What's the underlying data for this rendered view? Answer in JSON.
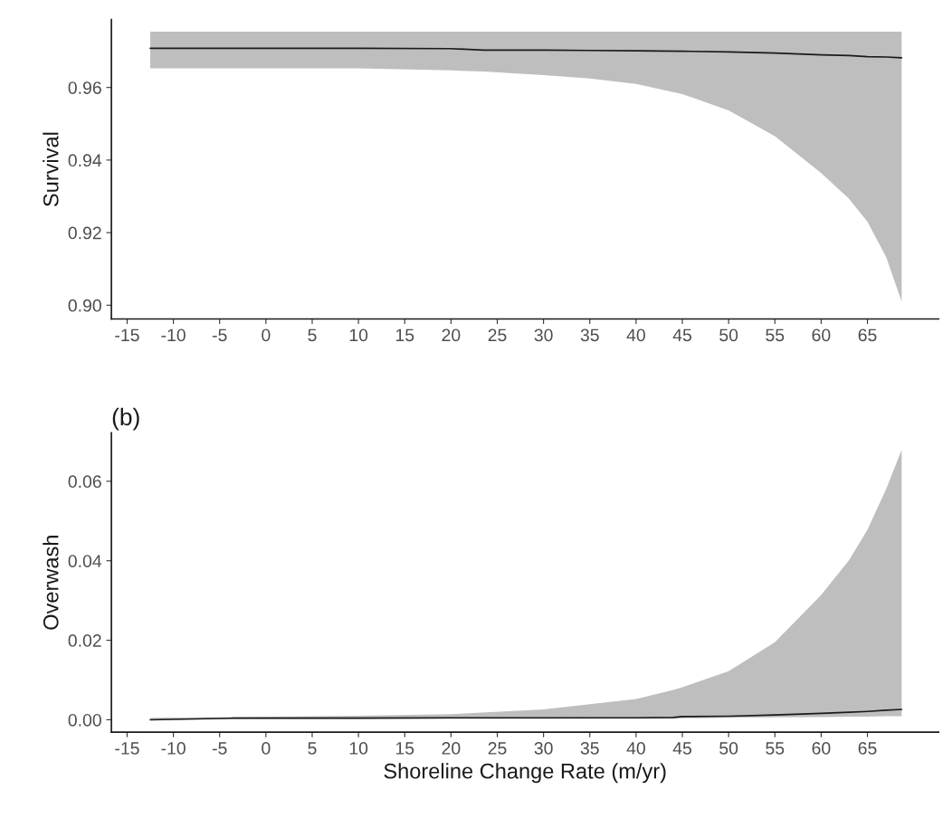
{
  "chart_data": [
    {
      "type": "line",
      "ylabel": "Survival",
      "x": [
        -12.5,
        0,
        10,
        20,
        23.5,
        30,
        35,
        40,
        45,
        50,
        55,
        60,
        63,
        65,
        67,
        68.7
      ],
      "series": [
        {
          "color": "#1a1a1a",
          "values": [
            0.9708,
            0.9708,
            0.9708,
            0.9707,
            0.9703,
            0.9703,
            0.9702,
            0.9701,
            0.97,
            0.9698,
            0.9695,
            0.969,
            0.9688,
            0.9685,
            0.9684,
            0.9682
          ],
          "lower": [
            0.9653,
            0.9653,
            0.9653,
            0.9647,
            0.9644,
            0.9634,
            0.9625,
            0.961,
            0.9582,
            0.9537,
            0.9466,
            0.9364,
            0.9294,
            0.923,
            0.9134,
            0.901
          ],
          "upper": [
            0.9754,
            0.9754,
            0.9754,
            0.9754,
            0.9754,
            0.9754,
            0.9754,
            0.9754,
            0.9754,
            0.9754,
            0.9754,
            0.9754,
            0.9754,
            0.9754,
            0.9754,
            0.9754
          ]
        }
      ],
      "xlim": [
        -16.7,
        72.7
      ],
      "xticks": [
        -15,
        -10,
        -5,
        0,
        5,
        10,
        15,
        20,
        25,
        30,
        35,
        40,
        45,
        50,
        55,
        60,
        65
      ],
      "ylim": [
        0.8962,
        0.9787
      ],
      "yticks": [
        {
          "value": 0.9,
          "label": "0.90"
        },
        {
          "value": 0.92,
          "label": "0.92"
        },
        {
          "value": 0.94,
          "label": "0.94"
        },
        {
          "value": 0.96,
          "label": "0.96"
        }
      ],
      "grid": false
    },
    {
      "type": "line",
      "title": "(b)",
      "xlabel": "Shoreline Change Rate (m/yr)",
      "ylabel": "Overwash",
      "x": [
        -12.5,
        -3.5,
        10,
        20,
        30,
        40,
        44,
        45,
        50,
        55,
        60,
        63,
        65,
        67,
        68.7
      ],
      "series": [
        {
          "color": "#1a1a1a",
          "values": [
            0.0,
            0.0004,
            0.0004,
            0.0005,
            0.0005,
            0.0005,
            0.0006,
            0.0008,
            0.0009,
            0.0012,
            0.0016,
            0.0019,
            0.0021,
            0.0024,
            0.0026
          ],
          "lower": [
            0.0,
            0.0002,
            0.0002,
            0.0002,
            0.0002,
            0.0003,
            0.0003,
            0.0004,
            0.0005,
            0.0006,
            0.0007,
            0.0008,
            0.0008,
            0.0009,
            0.0009
          ],
          "upper": [
            0.0005,
            0.0007,
            0.001,
            0.0014,
            0.0026,
            0.0052,
            0.0075,
            0.0082,
            0.0122,
            0.0195,
            0.0314,
            0.0401,
            0.0478,
            0.0579,
            0.0679
          ]
        }
      ],
      "xlim": [
        -16.7,
        72.7
      ],
      "xticks": [
        -15,
        -10,
        -5,
        0,
        5,
        10,
        15,
        20,
        25,
        30,
        35,
        40,
        45,
        50,
        55,
        60,
        65
      ],
      "ylim": [
        -0.0031,
        0.0722
      ],
      "yticks": [
        {
          "value": 0.0,
          "label": "0.00"
        },
        {
          "value": 0.02,
          "label": "0.02"
        },
        {
          "value": 0.04,
          "label": "0.04"
        },
        {
          "value": 0.06,
          "label": "0.06"
        }
      ],
      "grid": false
    }
  ]
}
